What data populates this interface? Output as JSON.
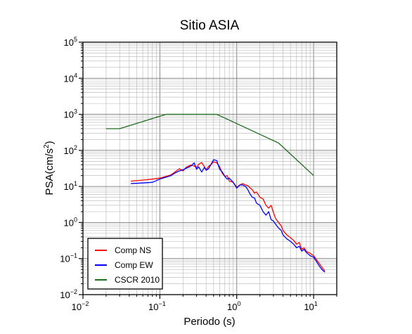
{
  "chart_data": {
    "type": "line",
    "title": "Sitio ASIA",
    "xlabel": "Periodo (s)",
    "ylabel": {
      "base": "PSA(cm/s",
      "sup": "2",
      "tail": ")"
    },
    "x_scale": "log",
    "y_scale": "log",
    "xlim": [
      0.01,
      20
    ],
    "ylim": [
      0.01,
      100000
    ],
    "grid": true,
    "legend_position": "bottom-left",
    "x_ticks": [
      {
        "value": 0.01,
        "base": "10",
        "exp": "−2"
      },
      {
        "value": 0.1,
        "base": "10",
        "exp": "−1"
      },
      {
        "value": 1,
        "base": "10",
        "exp": "0"
      },
      {
        "value": 10,
        "base": "10",
        "exp": "1"
      }
    ],
    "y_ticks": [
      {
        "value": 0.01,
        "base": "10",
        "exp": "−2"
      },
      {
        "value": 0.1,
        "base": "10",
        "exp": "−1"
      },
      {
        "value": 1,
        "base": "10",
        "exp": "0"
      },
      {
        "value": 10,
        "base": "10",
        "exp": "1"
      },
      {
        "value": 100,
        "base": "10",
        "exp": "2"
      },
      {
        "value": 1000,
        "base": "10",
        "exp": "3"
      },
      {
        "value": 10000,
        "base": "10",
        "exp": "4"
      },
      {
        "value": 100000,
        "base": "10",
        "exp": "5"
      }
    ],
    "series": [
      {
        "name": "Comp NS",
        "color": "#ff0000",
        "x": [
          0.042,
          0.06,
          0.08,
          0.1,
          0.12,
          0.14,
          0.16,
          0.18,
          0.2,
          0.22,
          0.25,
          0.28,
          0.3,
          0.32,
          0.35,
          0.38,
          0.4,
          0.43,
          0.46,
          0.5,
          0.55,
          0.6,
          0.65,
          0.7,
          0.75,
          0.8,
          0.9,
          1.0,
          1.1,
          1.2,
          1.3,
          1.4,
          1.5,
          1.6,
          1.7,
          1.8,
          1.9,
          2.0,
          2.2,
          2.4,
          2.6,
          2.8,
          3.0,
          3.2,
          3.5,
          3.8,
          4.0,
          4.5,
          5.0,
          5.5,
          6.0,
          6.5,
          7.0,
          7.5,
          8.0,
          9.0,
          10.0,
          11.0,
          12.0,
          13.0,
          14.0
        ],
        "y": [
          14,
          15,
          16,
          17,
          19,
          21,
          26,
          31,
          27,
          34,
          39,
          37,
          33,
          41,
          46,
          35,
          29,
          36,
          40,
          48,
          45,
          35,
          23,
          19,
          20,
          14,
          13,
          9.5,
          11,
          12,
          11,
          10.5,
          9,
          8,
          6.5,
          7,
          6,
          5,
          4.5,
          3,
          2.5,
          3,
          1.9,
          1.3,
          1.0,
          0.8,
          0.6,
          0.45,
          0.38,
          0.32,
          0.25,
          0.28,
          0.18,
          0.2,
          0.16,
          0.14,
          0.12,
          0.09,
          0.07,
          0.055,
          0.045
        ]
      },
      {
        "name": "Comp EW",
        "color": "#0000ff",
        "x": [
          0.042,
          0.06,
          0.08,
          0.1,
          0.12,
          0.14,
          0.16,
          0.18,
          0.2,
          0.22,
          0.25,
          0.28,
          0.3,
          0.32,
          0.35,
          0.38,
          0.4,
          0.43,
          0.46,
          0.5,
          0.55,
          0.6,
          0.65,
          0.7,
          0.75,
          0.8,
          0.9,
          1.0,
          1.1,
          1.2,
          1.3,
          1.4,
          1.5,
          1.6,
          1.7,
          1.8,
          1.9,
          2.0,
          2.2,
          2.4,
          2.6,
          2.8,
          3.0,
          3.2,
          3.5,
          3.8,
          4.0,
          4.5,
          5.0,
          5.5,
          6.0,
          6.5,
          7.0,
          7.5,
          8.0,
          9.0,
          10.0,
          11.0,
          12.0,
          13.0,
          14.0
        ],
        "y": [
          12,
          12.5,
          13,
          16,
          18,
          20,
          24,
          27,
          29,
          32,
          36,
          45,
          30,
          35,
          25,
          34,
          28,
          31,
          40,
          55,
          52,
          30,
          25,
          19,
          16,
          17,
          13,
          9,
          11,
          11,
          10,
          8,
          6,
          5,
          4.8,
          3.5,
          3.2,
          3,
          2.0,
          1.6,
          2.0,
          1.2,
          1.1,
          0.9,
          0.7,
          0.6,
          0.45,
          0.35,
          0.3,
          0.25,
          0.2,
          0.22,
          0.16,
          0.18,
          0.15,
          0.12,
          0.11,
          0.08,
          0.06,
          0.048,
          0.042
        ]
      },
      {
        "name": "CSCR 2010",
        "color": "#1f6b1f",
        "x": [
          0.02,
          0.03,
          0.12,
          0.55,
          3.5,
          10
        ],
        "y": [
          400,
          400,
          1000,
          1000,
          160,
          20
        ]
      }
    ]
  }
}
